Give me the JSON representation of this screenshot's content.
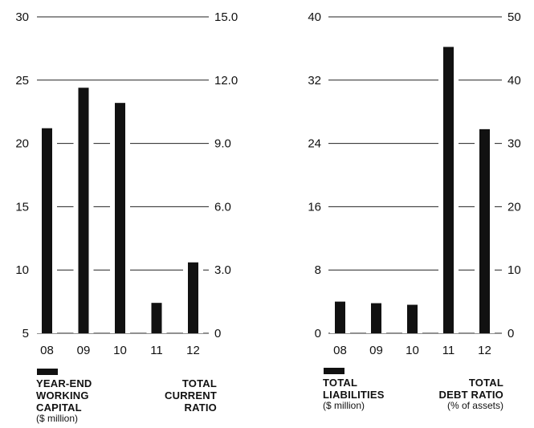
{
  "colors": {
    "bar": "#111111",
    "grid": "#222222",
    "text": "#111111",
    "background": "#ffffff"
  },
  "chart_data": [
    {
      "type": "bar",
      "categories": [
        "08",
        "09",
        "10",
        "11",
        "12"
      ],
      "values": [
        21.2,
        24.4,
        23.2,
        7.4,
        10.6
      ],
      "ylim": [
        5,
        30
      ],
      "left_ticks": [
        "30",
        "25",
        "20",
        "15",
        "10",
        "5"
      ],
      "right_ticks": [
        "15.0",
        "12.0",
        "9.0",
        "6.0",
        "3.0",
        "0"
      ],
      "grid": true,
      "legend": {
        "left_lines": [
          "YEAR-END",
          "WORKING",
          "CAPITAL"
        ],
        "left_sub": "($ million)",
        "right_lines": [
          "TOTAL",
          "CURRENT",
          "RATIO"
        ]
      }
    },
    {
      "type": "bar",
      "categories": [
        "08",
        "09",
        "10",
        "11",
        "12"
      ],
      "values": [
        4.0,
        3.8,
        3.6,
        36.2,
        25.8
      ],
      "ylim": [
        0,
        40
      ],
      "left_ticks": [
        "40",
        "32",
        "24",
        "16",
        "8",
        "0"
      ],
      "right_ticks": [
        "50",
        "40",
        "30",
        "20",
        "10",
        "0"
      ],
      "grid": true,
      "legend": {
        "left_lines": [
          "TOTAL",
          "LIABILITIES"
        ],
        "left_sub": "($ million)",
        "right_lines": [
          "TOTAL",
          "DEBT RATIO"
        ],
        "right_sub": "(% of assets)"
      }
    }
  ]
}
